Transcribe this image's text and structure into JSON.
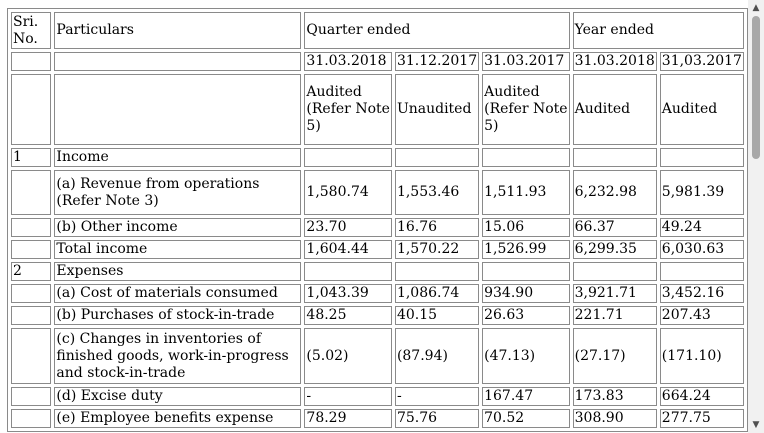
{
  "header": {
    "sr_no": "Sri. No.",
    "particulars": "Particulars",
    "quarter_ended": "Quarter ended",
    "year_ended": "Year ended",
    "dates": [
      "31.03.2018",
      "31.12.2017",
      "31.03.2017",
      "31.03.2018",
      "31,03.2017"
    ],
    "audit_status": [
      "Audited (Refer Note 5)",
      "Unaudited",
      "Audited (Refer Note 5)",
      "Audited",
      "Audited"
    ]
  },
  "rows": [
    {
      "sr": "1",
      "label": "Income",
      "values": [
        "",
        "",
        "",
        "",
        ""
      ]
    },
    {
      "sr": "",
      "label": "(a) Revenue from operations (Refer Note 3)",
      "values": [
        "1,580.74",
        "1,553.46",
        "1,511.93",
        "6,232.98",
        "5,981.39"
      ]
    },
    {
      "sr": "",
      "label": "(b) Other income",
      "values": [
        "23.70",
        "16.76",
        "15.06",
        "66.37",
        "49.24"
      ]
    },
    {
      "sr": "",
      "label": "Total income",
      "values": [
        "1,604.44",
        "1,570.22",
        "1,526.99",
        "6,299.35",
        "6,030.63"
      ]
    },
    {
      "sr": "2",
      "label": "Expenses",
      "values": [
        "",
        "",
        "",
        "",
        ""
      ]
    },
    {
      "sr": "",
      "label": "(a) Cost of materials consumed",
      "values": [
        "1,043.39",
        "1,086.74",
        "934.90",
        "3,921.71",
        "3,452.16"
      ]
    },
    {
      "sr": "",
      "label": "(b) Purchases of stock-in-trade",
      "values": [
        "48.25",
        "40.15",
        "26.63",
        "221.71",
        "207.43"
      ]
    },
    {
      "sr": "",
      "label": "(c) Changes in inventories of finished goods, work-in-progress and stock-in-trade",
      "values": [
        "(5.02)",
        "(87.94)",
        "(47.13)",
        "(27.17)",
        "(171.10)"
      ]
    },
    {
      "sr": "",
      "label": "(d) Excise duty",
      "values": [
        "-",
        "-",
        "167.47",
        "173.83",
        "664.24"
      ]
    },
    {
      "sr": "",
      "label": "(e) Employee benefits expense",
      "values": [
        "78.29",
        "75.76",
        "70.52",
        "308.90",
        "277.75"
      ]
    }
  ],
  "scrollbar": {
    "up_icon": "▲",
    "down_icon": "▼",
    "position_fraction": 0.0
  }
}
